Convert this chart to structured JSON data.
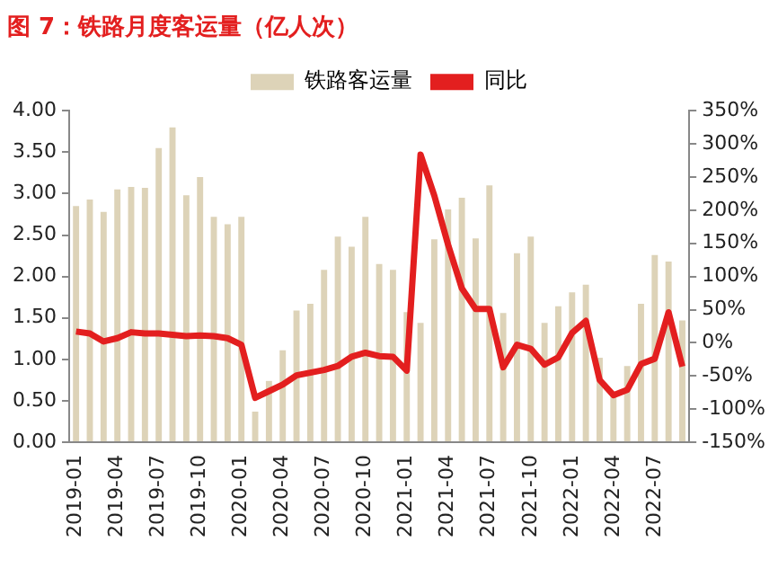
{
  "chart_data": {
    "type": "bar",
    "title": "图 7：铁路月度客运量（亿人次）",
    "categories": [
      "2019-01",
      null,
      null,
      "2019-04",
      null,
      null,
      "2019-07",
      null,
      null,
      "2019-10",
      null,
      null,
      "2020-01",
      null,
      null,
      "2020-04",
      null,
      null,
      "2020-07",
      null,
      null,
      "2020-10",
      null,
      null,
      "2021-01",
      null,
      null,
      "2021-04",
      null,
      null,
      "2021-07",
      null,
      null,
      "2021-10",
      null,
      null,
      "2022-01",
      null,
      null,
      "2022-04",
      null,
      null,
      "2022-07",
      null,
      null
    ],
    "series": [
      {
        "name": "铁路客运量",
        "color": "#ddd3b8",
        "values": [
          2.85,
          2.93,
          2.78,
          3.05,
          3.08,
          3.07,
          3.55,
          3.8,
          2.98,
          3.2,
          2.72,
          2.63,
          2.72,
          0.37,
          0.74,
          1.11,
          1.59,
          1.67,
          2.08,
          2.48,
          2.36,
          2.72,
          2.15,
          2.08,
          1.57,
          1.44,
          2.45,
          2.81,
          2.95,
          2.46,
          3.1,
          1.56,
          2.28,
          2.48,
          1.44,
          1.64,
          1.81,
          1.9,
          1.02,
          0.58,
          0.92,
          1.67,
          2.26,
          2.18,
          1.47
        ]
      },
      {
        "name": "同比",
        "type": "line",
        "axis": "y2",
        "color": "#e31f1f",
        "values": [
          17,
          14,
          2,
          7,
          16,
          14,
          14,
          12,
          10,
          11,
          10,
          7,
          -3,
          -83,
          -73,
          -63,
          -49,
          -45,
          -41,
          -35,
          -21,
          -15,
          -20,
          -21,
          -42,
          284,
          222,
          148,
          82,
          51,
          51,
          -37,
          -3,
          -9,
          -33,
          -22,
          15,
          33,
          -56,
          -79,
          -71,
          -32,
          -24,
          46,
          -36
        ]
      }
    ],
    "ylim": [
      0,
      4
    ],
    "yticks": [
      {
        "value": 0,
        "label": "0.00"
      },
      {
        "value": 0.5,
        "label": "0.50"
      },
      {
        "value": 1,
        "label": "1.00"
      },
      {
        "value": 1.5,
        "label": "1.50"
      },
      {
        "value": 2,
        "label": "2.00"
      },
      {
        "value": 2.5,
        "label": "2.50"
      },
      {
        "value": 3,
        "label": "3.00"
      },
      {
        "value": 3.5,
        "label": "3.50"
      },
      {
        "value": 4,
        "label": "4.00"
      }
    ],
    "y2lim": [
      -150,
      350
    ],
    "y2ticks": [
      {
        "value": -150,
        "label": "-150%"
      },
      {
        "value": -100,
        "label": "-100%"
      },
      {
        "value": -50,
        "label": "-50%"
      },
      {
        "value": 0,
        "label": "0%"
      },
      {
        "value": 50,
        "label": "50%"
      },
      {
        "value": 100,
        "label": "100%"
      },
      {
        "value": 150,
        "label": "150%"
      },
      {
        "value": 200,
        "label": "200%"
      },
      {
        "value": 250,
        "label": "250%"
      },
      {
        "value": 300,
        "label": "300%"
      },
      {
        "value": 350,
        "label": "350%"
      }
    ],
    "grid": false,
    "legend": "top"
  }
}
